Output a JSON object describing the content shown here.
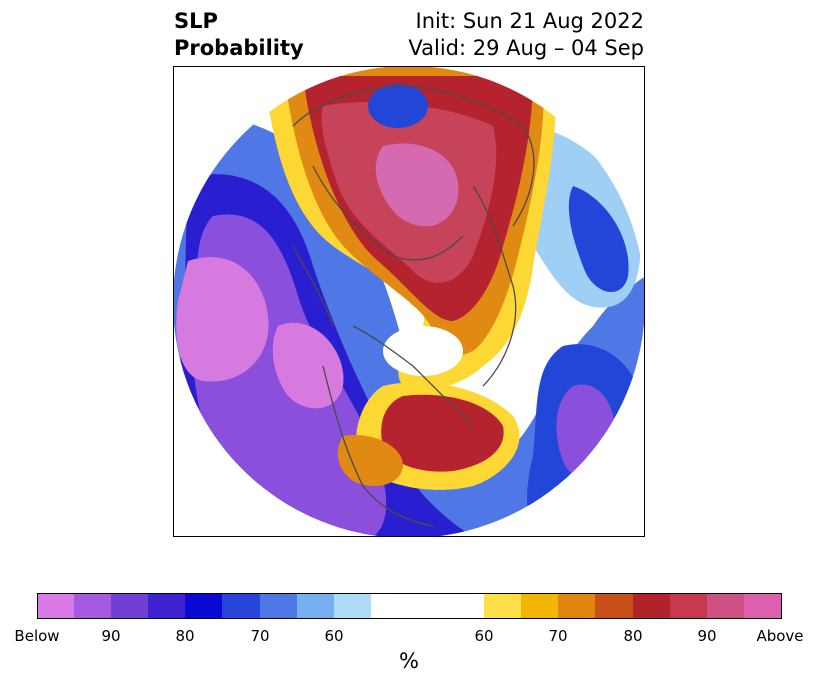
{
  "title": {
    "left_line1": "SLP",
    "left_line2": "Probability",
    "right_line1": "Init: Sun 21 Aug 2022",
    "right_line2": "Valid: 29 Aug – 04 Sep"
  },
  "colorbar": {
    "units": "%",
    "ticks": [
      "Below",
      "90",
      "80",
      "70",
      "60",
      "60",
      "70",
      "80",
      "90",
      "Above"
    ],
    "colors": [
      "#d97ae6",
      "#a35ae0",
      "#6f3fd6",
      "#3e22cf",
      "#0b0ad3",
      "#2a45db",
      "#4f78e6",
      "#77b0f0",
      "#aedcf8",
      "#ffffff",
      "#ffffff",
      "#fde047",
      "#f2b705",
      "#e0850f",
      "#c84f17",
      "#b22229",
      "#c53a50",
      "#cf5184",
      "#dd60ae",
      "#e57ad9"
    ]
  },
  "map": {
    "colors": {
      "purple": "#d77ae0",
      "violet": "#8a50dc",
      "deep_blue": "#2a1fd0",
      "blue": "#2146d8",
      "light_blue": "#9fcff5",
      "white": "#ffffff",
      "yellow": "#fdd835",
      "orange": "#e08a14",
      "red": "#b5232e",
      "crimson": "#c7435a",
      "pink": "#d56ab0",
      "coastline": "#4a4a4a"
    }
  }
}
